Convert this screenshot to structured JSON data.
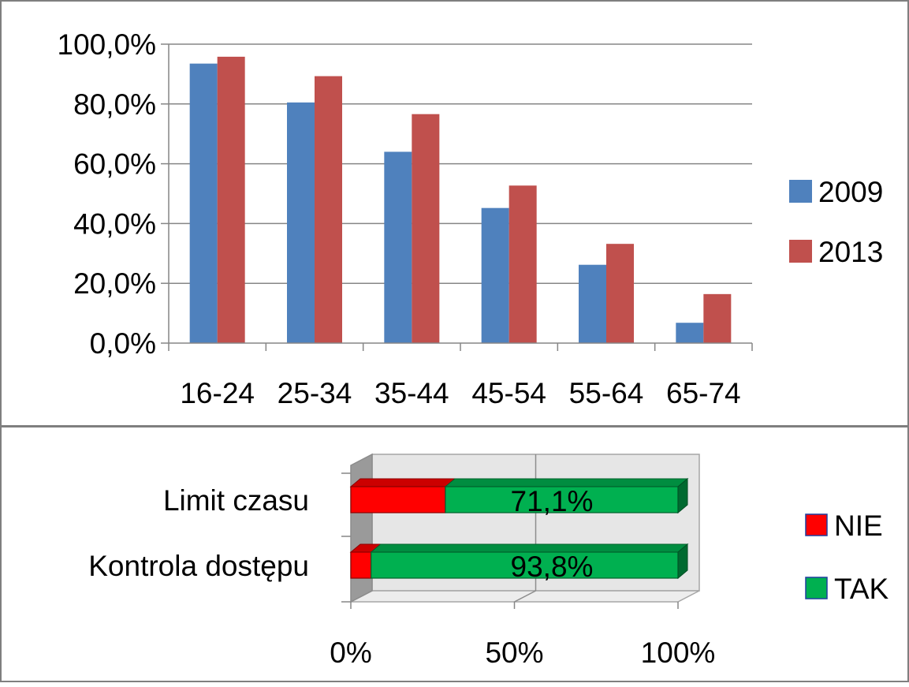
{
  "chart_data": [
    {
      "type": "bar",
      "categories": [
        "16-24",
        "25-34",
        "35-44",
        "45-54",
        "55-64",
        "65-74"
      ],
      "series": [
        {
          "name": "2009",
          "values": [
            93.5,
            80.5,
            64.0,
            45.2,
            26.2,
            6.8
          ],
          "color": "#4F81BD"
        },
        {
          "name": "2013",
          "values": [
            95.8,
            89.3,
            76.6,
            52.7,
            33.2,
            16.4
          ],
          "color": "#C0504D"
        }
      ],
      "ylim": [
        0,
        100
      ],
      "y_ticks": [
        0,
        20,
        40,
        60,
        80,
        100
      ],
      "y_tick_labels": [
        "0,0%",
        "20,0%",
        "40,0%",
        "60,0%",
        "80,0%",
        "100,0%"
      ],
      "grid": true,
      "legend_position": "right"
    },
    {
      "type": "bar",
      "orientation": "horizontal",
      "stacked": "percent",
      "style": "3d",
      "categories": [
        "Limit czasu",
        "Kontrola dostępu"
      ],
      "series": [
        {
          "name": "NIE",
          "values": [
            28.9,
            6.2
          ],
          "color": "#FF0000"
        },
        {
          "name": "TAK",
          "values": [
            71.1,
            93.8
          ],
          "color": "#00B050"
        }
      ],
      "data_labels": [
        "71,1%",
        "93,8%"
      ],
      "xlim": [
        0,
        100
      ],
      "x_ticks": [
        0,
        50,
        100
      ],
      "x_tick_labels": [
        "0%",
        "50%",
        "100%"
      ],
      "grid": true,
      "legend_position": "right"
    }
  ]
}
